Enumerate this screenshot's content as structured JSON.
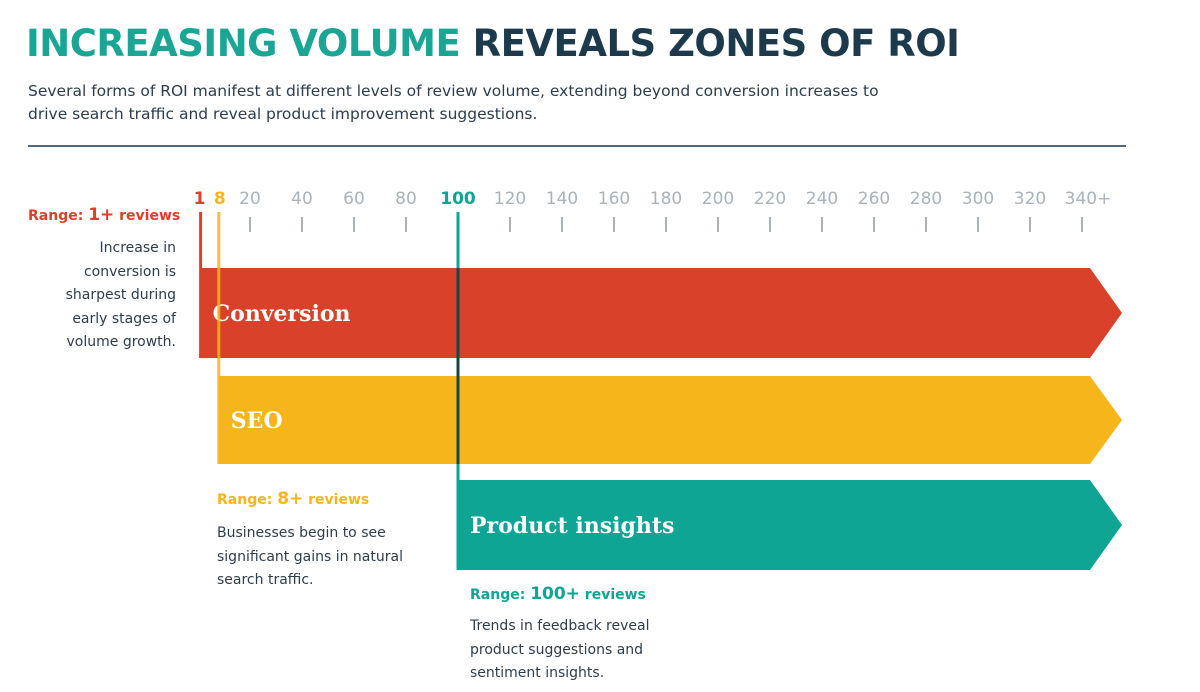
{
  "title": {
    "part1": "INCREASING VOLUME",
    "part2": "REVEALS ZONES OF ROI"
  },
  "subtitle": "Several forms of ROI manifest at different levels of review volume, extending beyond conversion increases to drive search traffic and reveal product improvement suggestions.",
  "colors": {
    "conversion": "#d9412a",
    "seo": "#f7b51c",
    "product_insights": "#0ea595",
    "tick": "#a9b3b9",
    "title_accent": "#1aa595",
    "title_dark": "#1d3a4c"
  },
  "chart_data": {
    "type": "bar",
    "orientation": "horizontal-range",
    "axis": {
      "ticks": [
        20,
        40,
        60,
        80,
        100,
        120,
        140,
        160,
        180,
        200,
        220,
        240,
        260,
        280,
        300,
        320,
        340
      ],
      "tick_labels": [
        "20",
        "40",
        "60",
        "80",
        "100",
        "120",
        "140",
        "160",
        "180",
        "200",
        "220",
        "240",
        "260",
        "280",
        "300",
        "320",
        "340+"
      ],
      "marker_labels": [
        "1",
        "8",
        "100"
      ]
    },
    "series": [
      {
        "name": "Conversion",
        "start": 1,
        "end": "340+",
        "color": "#d9412a"
      },
      {
        "name": "SEO",
        "start": 8,
        "end": "340+",
        "color": "#f7b51c"
      },
      {
        "name": "Product insights",
        "start": 100,
        "end": "340+",
        "color": "#0ea595"
      }
    ],
    "annotations": [
      {
        "prefix": "Range: ",
        "value": "1+",
        "suffix": " reviews",
        "text": "Increase in conversion is sharpest during early stages of volume growth."
      },
      {
        "prefix": "Range: ",
        "value": "8+",
        "suffix": " reviews",
        "text": "Businesses begin to see significant gains in natural search traffic."
      },
      {
        "prefix": "Range: ",
        "value": "100+",
        "suffix": " reviews",
        "text": "Trends in feedback reveal product suggestions and sentiment insights."
      }
    ]
  }
}
